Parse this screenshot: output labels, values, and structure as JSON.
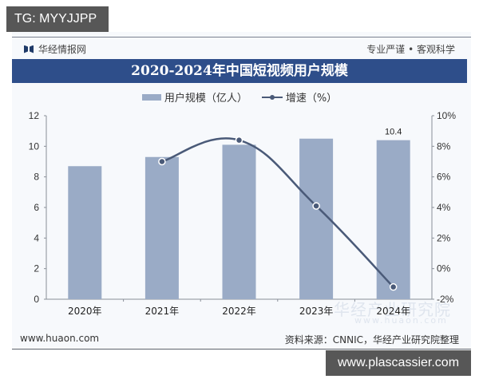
{
  "overlay": {
    "tg_label": "TG: MYYJJPP",
    "site_label": "www.plascassier.com"
  },
  "header": {
    "brand": "华经情报网",
    "slogan": "专业严谨 • 客观科学",
    "title": "2020-2024年中国短视频用户规模"
  },
  "legend": {
    "bar_label": "用户规模（亿人）",
    "line_label": "增速（%）"
  },
  "footer": {
    "left": "www.huaon.com",
    "right": "资料来源：CNNIC，华经产业研究院整理"
  },
  "watermark": {
    "text": "华经产业研究院",
    "url": "www.huaon.com"
  },
  "colors": {
    "bar": "#9aabc6",
    "line": "#4a5a78",
    "title_bg": "#2e4e8a"
  },
  "chart_data": {
    "type": "bar+line",
    "title": "2020-2024年中国短视频用户规模",
    "categories": [
      "2020年",
      "2021年",
      "2022年",
      "2023年",
      "2024年"
    ],
    "series": [
      {
        "name": "用户规模（亿人）",
        "type": "bar",
        "axis": "left",
        "values": [
          8.7,
          9.3,
          10.1,
          10.5,
          10.4
        ]
      },
      {
        "name": "增速（%）",
        "type": "line",
        "axis": "right",
        "values": [
          null,
          7.0,
          8.4,
          4.1,
          -1.2
        ]
      }
    ],
    "data_labels": [
      {
        "category": "2024年",
        "label": "10.4"
      }
    ],
    "left_axis": {
      "min": 0,
      "max": 12,
      "ticks": [
        "0",
        "2",
        "4",
        "6",
        "8",
        "10",
        "12"
      ]
    },
    "right_axis": {
      "min": -2,
      "max": 10,
      "ticks": [
        "-2%",
        "0%",
        "2%",
        "4%",
        "6%",
        "8%",
        "10%"
      ]
    },
    "legend_position": "top",
    "grid": false
  }
}
